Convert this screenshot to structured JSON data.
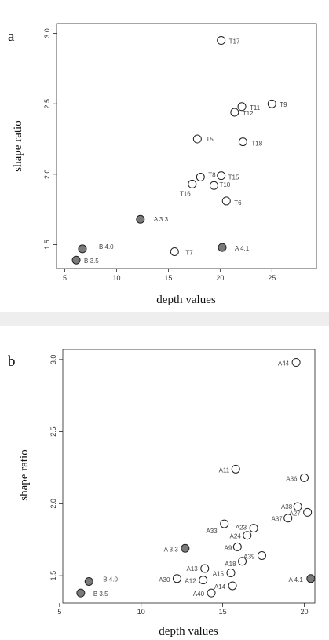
{
  "chart_data": [
    {
      "type": "scatter",
      "panel_label": "a",
      "xlabel": "depth values",
      "ylabel": "shape ratio",
      "xlim": [
        4.2,
        29.3
      ],
      "ylim": [
        1.33,
        3.07
      ],
      "xticks": [
        5,
        10,
        15,
        20,
        25
      ],
      "yticks": [
        1.5,
        2.0,
        2.5,
        3.0
      ],
      "tick_labels_x": [
        "5",
        "10",
        "15",
        "20",
        "25"
      ],
      "tick_labels_y": [
        "1.5",
        "2.0",
        "2.5",
        "3.0"
      ],
      "grid": false,
      "points": [
        {
          "label": "T17",
          "x": 20.1,
          "y": 2.95,
          "fill": "#ffffff"
        },
        {
          "label": "T9",
          "x": 25.0,
          "y": 2.5,
          "fill": "#ffffff"
        },
        {
          "label": "T11",
          "x": 22.1,
          "y": 2.48,
          "fill": "#ffffff"
        },
        {
          "label": "T12",
          "x": 21.4,
          "y": 2.44,
          "fill": "#ffffff"
        },
        {
          "label": "T5",
          "x": 17.8,
          "y": 2.25,
          "fill": "#ffffff"
        },
        {
          "label": "T18",
          "x": 22.2,
          "y": 2.23,
          "fill": "#ffffff"
        },
        {
          "label": "T8",
          "x": 18.1,
          "y": 1.98,
          "fill": "#ffffff"
        },
        {
          "label": "T15",
          "x": 20.1,
          "y": 1.99,
          "fill": "#ffffff"
        },
        {
          "label": "T10",
          "x": 19.4,
          "y": 1.92,
          "fill": "#ffffff"
        },
        {
          "label": "T16",
          "x": 17.3,
          "y": 1.93,
          "fill": "#ffffff"
        },
        {
          "label": "T6",
          "x": 20.6,
          "y": 1.81,
          "fill": "#ffffff"
        },
        {
          "label": "A 3.3",
          "x": 12.3,
          "y": 1.68,
          "fill": "#7a7a7a"
        },
        {
          "label": "B 4.0",
          "x": 6.7,
          "y": 1.47,
          "fill": "#7a7a7a"
        },
        {
          "label": "B 3.5",
          "x": 6.1,
          "y": 1.39,
          "fill": "#7a7a7a"
        },
        {
          "label": "T7",
          "x": 15.6,
          "y": 1.45,
          "fill": "#ffffff"
        },
        {
          "label": "A 4.1",
          "x": 20.2,
          "y": 1.48,
          "fill": "#7a7a7a"
        }
      ]
    },
    {
      "type": "scatter",
      "panel_label": "b",
      "xlabel": "depth values",
      "ylabel": "shape ratio",
      "xlim": [
        5.2,
        20.65
      ],
      "ylim": [
        1.31,
        3.07
      ],
      "xticks": [
        5,
        10,
        15,
        20
      ],
      "yticks": [
        1.5,
        2.0,
        2.5,
        3.0
      ],
      "tick_labels_x": [
        "5",
        "10",
        "15",
        "20"
      ],
      "tick_labels_y": [
        "1.5",
        "2.0",
        "2.5",
        "3.0"
      ],
      "grid": false,
      "points": [
        {
          "label": "A44",
          "x": 19.5,
          "y": 2.98,
          "fill": "#ffffff"
        },
        {
          "label": "A11",
          "x": 15.8,
          "y": 2.24,
          "fill": "#ffffff"
        },
        {
          "label": "A36",
          "x": 20.0,
          "y": 2.18,
          "fill": "#ffffff"
        },
        {
          "label": "A38",
          "x": 19.6,
          "y": 1.98,
          "fill": "#ffffff"
        },
        {
          "label": "A27",
          "x": 20.2,
          "y": 1.94,
          "fill": "#ffffff"
        },
        {
          "label": "A37",
          "x": 19.0,
          "y": 1.9,
          "fill": "#ffffff"
        },
        {
          "label": "A33",
          "x": 15.1,
          "y": 1.86,
          "fill": "#ffffff"
        },
        {
          "label": "A23",
          "x": 16.9,
          "y": 1.83,
          "fill": "#ffffff"
        },
        {
          "label": "A24",
          "x": 16.5,
          "y": 1.78,
          "fill": "#ffffff"
        },
        {
          "label": "A9",
          "x": 15.9,
          "y": 1.7,
          "fill": "#ffffff"
        },
        {
          "label": "A 3.3",
          "x": 12.7,
          "y": 1.69,
          "fill": "#7a7a7a"
        },
        {
          "label": "A39",
          "x": 17.4,
          "y": 1.64,
          "fill": "#ffffff"
        },
        {
          "label": "A18",
          "x": 16.2,
          "y": 1.6,
          "fill": "#ffffff"
        },
        {
          "label": "A13",
          "x": 13.9,
          "y": 1.55,
          "fill": "#ffffff"
        },
        {
          "label": "A15",
          "x": 15.5,
          "y": 1.52,
          "fill": "#ffffff"
        },
        {
          "label": "A30",
          "x": 12.2,
          "y": 1.48,
          "fill": "#ffffff"
        },
        {
          "label": "A12",
          "x": 13.8,
          "y": 1.47,
          "fill": "#ffffff"
        },
        {
          "label": "A14",
          "x": 15.6,
          "y": 1.43,
          "fill": "#ffffff"
        },
        {
          "label": "A40",
          "x": 14.3,
          "y": 1.38,
          "fill": "#ffffff"
        },
        {
          "label": "B 4.0",
          "x": 6.8,
          "y": 1.46,
          "fill": "#7a7a7a"
        },
        {
          "label": "B 3.5",
          "x": 6.3,
          "y": 1.38,
          "fill": "#7a7a7a"
        },
        {
          "label": "A 4.1",
          "x": 20.4,
          "y": 1.48,
          "fill": "#7a7a7a"
        }
      ]
    }
  ]
}
